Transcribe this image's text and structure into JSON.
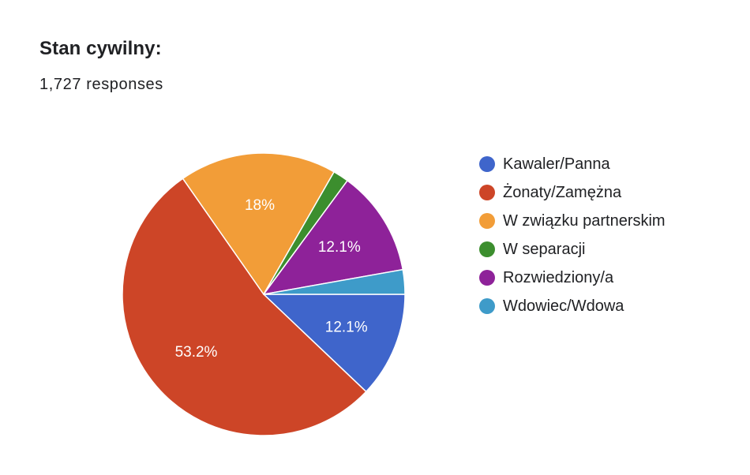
{
  "question": {
    "title": "Stan cywilny:",
    "responses": "1,727 responses"
  },
  "chart_data": {
    "type": "pie",
    "categories": [
      "Kawaler/Panna",
      "Żonaty/Zamężna",
      "W związku partnerskim",
      "W separacji",
      "Rozwiedziony/a",
      "Wdowiec/Wdowa"
    ],
    "values": [
      12.1,
      53.2,
      18.0,
      1.8,
      12.1,
      2.8
    ],
    "labels": [
      "12.1%",
      "53.2%",
      "18%",
      "",
      "12.1%",
      ""
    ],
    "colors": [
      "#3f65cb",
      "#cd4527",
      "#f29d38",
      "#3c8e2e",
      "#8e2299",
      "#3e9bc9"
    ],
    "legend_position": "right"
  }
}
